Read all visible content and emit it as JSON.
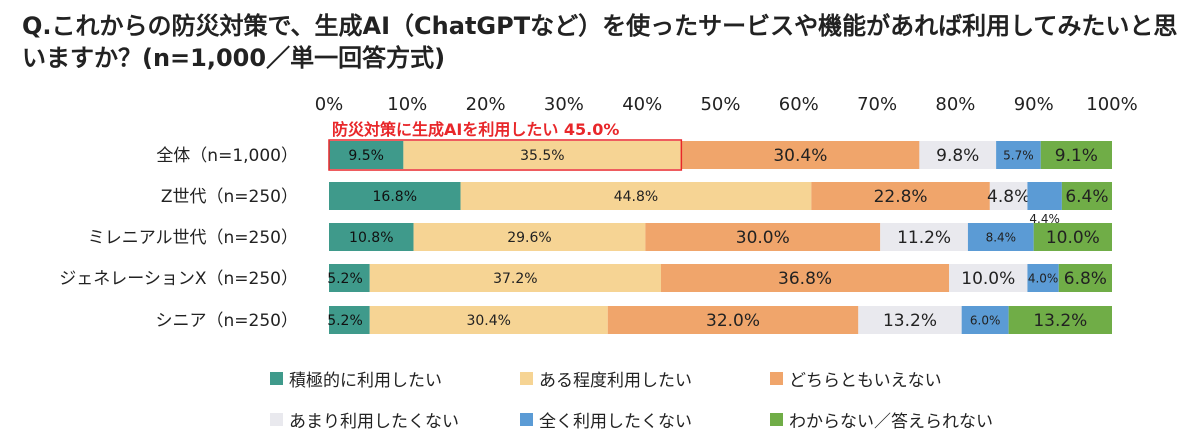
{
  "chart_data": {
    "type": "bar",
    "stacked": true,
    "orientation": "horizontal",
    "title": "Q.これからの防災対策で、生成AI（ChatGPTなど）を使ったサービスや機能があれば利用してみたいと思いますか？(n=1,000／単一回答方式)",
    "xlim": [
      0,
      100
    ],
    "xticks": [
      "0%",
      "10%",
      "20%",
      "30%",
      "40%",
      "50%",
      "60%",
      "70%",
      "80%",
      "90%",
      "100%"
    ],
    "categories": [
      "全体（n=1,000）",
      "Z世代（n=250）",
      "ミレニアル世代（n=250）",
      "ジェネレーションX（n=250）",
      "シニア（n=250）"
    ],
    "series": [
      {
        "name": "積極的に利用したい",
        "color": "#3f9a8b",
        "values": [
          9.5,
          16.8,
          10.8,
          5.2,
          5.2
        ]
      },
      {
        "name": "ある程度利用したい",
        "color": "#f6d494",
        "values": [
          35.5,
          44.8,
          29.6,
          37.2,
          30.4
        ]
      },
      {
        "name": "どちらともいえない",
        "color": "#f0a56b",
        "values": [
          30.4,
          22.8,
          30.0,
          36.8,
          32.0
        ]
      },
      {
        "name": "あまり利用したくない",
        "color": "#e9e9ee",
        "values": [
          9.8,
          4.8,
          11.2,
          10.0,
          13.2
        ]
      },
      {
        "name": "全く利用したくない",
        "color": "#5b9bd5",
        "values": [
          5.7,
          4.4,
          8.4,
          4.0,
          6.0
        ]
      },
      {
        "name": "わからない／答えられない",
        "color": "#70ad47",
        "values": [
          9.1,
          6.4,
          10.0,
          6.8,
          13.2
        ]
      }
    ],
    "annotation": {
      "text": "防災対策に生成AIを利用したい 45.0%",
      "value": 45.0,
      "category": "全体（n=1,000）",
      "color": "#e8272a"
    },
    "legend": "bottom"
  }
}
